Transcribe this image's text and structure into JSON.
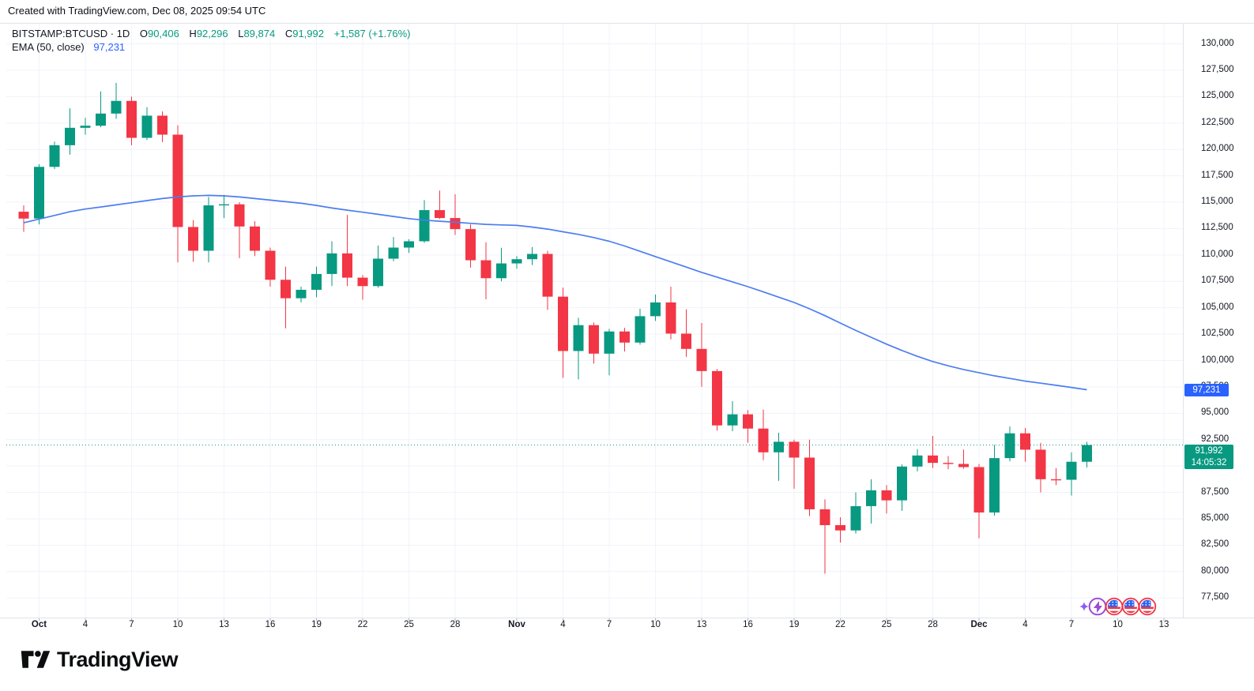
{
  "header": {
    "created_text": "Created with TradingView.com, Dec 08, 2025 09:54 UTC"
  },
  "legend": {
    "symbol_text": "BITSTAMP:BTCUSD · 1D",
    "o_label": "O",
    "o_value": "90,406",
    "h_label": "H",
    "h_value": "92,296",
    "l_label": "L",
    "l_value": "89,874",
    "c_label": "C",
    "c_value": "91,992",
    "change_text": "+1,587 (+1.76%)",
    "ema_label": "EMA (50, close)",
    "ema_value": "97,231"
  },
  "price_axis": {
    "ema_badge": {
      "text": "97,231",
      "color": "#2962ff"
    },
    "price_badge": {
      "price": "91,992",
      "countdown": "14:05:32",
      "color": "#089981"
    }
  },
  "events": {
    "icons": [
      "sparkle-icon",
      "lightning-event-icon",
      "us-flag-event-icon",
      "us-flag-event-icon",
      "us-flag-event-icon"
    ]
  },
  "footer": {
    "brand": "TradingView"
  },
  "chart_data": {
    "type": "candlestick",
    "title": "BITSTAMP:BTCUSD 1D with EMA(50)",
    "symbol": "BITSTAMP:BTCUSD",
    "interval": "1D",
    "start_date": "Sep 30",
    "end_date": "Dec 8",
    "current_price": 91992,
    "ema_current": 97231,
    "up_color": "#089981",
    "down_color": "#f23645",
    "ema_color": "#4c7df0",
    "grid_color": "#f0f3fa",
    "border_color": "#e0e3eb",
    "tick_stub_color": "#b2b5be",
    "ylim": [
      75643,
      131915
    ],
    "y_ticks": [
      130000,
      127500,
      125000,
      122500,
      120000,
      117500,
      115000,
      112500,
      110000,
      107500,
      105000,
      102500,
      100000,
      97500,
      95000,
      92500,
      90000,
      87500,
      85000,
      82500,
      80000,
      77500
    ],
    "x_labels": [
      {
        "i": 1,
        "t": "Oct",
        "bold": true
      },
      {
        "i": 4,
        "t": "4"
      },
      {
        "i": 7,
        "t": "7"
      },
      {
        "i": 10,
        "t": "10"
      },
      {
        "i": 13,
        "t": "13"
      },
      {
        "i": 16,
        "t": "16"
      },
      {
        "i": 19,
        "t": "19"
      },
      {
        "i": 22,
        "t": "22"
      },
      {
        "i": 25,
        "t": "25"
      },
      {
        "i": 28,
        "t": "28"
      },
      {
        "i": 32,
        "t": "Nov",
        "bold": true
      },
      {
        "i": 35,
        "t": "4"
      },
      {
        "i": 38,
        "t": "7"
      },
      {
        "i": 41,
        "t": "10"
      },
      {
        "i": 44,
        "t": "13"
      },
      {
        "i": 47,
        "t": "16"
      },
      {
        "i": 50,
        "t": "19"
      },
      {
        "i": 53,
        "t": "22"
      },
      {
        "i": 56,
        "t": "25"
      },
      {
        "i": 59,
        "t": "28"
      },
      {
        "i": 62,
        "t": "Dec",
        "bold": true
      },
      {
        "i": 65,
        "t": "4"
      },
      {
        "i": 68,
        "t": "7"
      },
      {
        "i": 71,
        "t": "10"
      },
      {
        "i": 74,
        "t": "13"
      }
    ],
    "candles": [
      [
        114100,
        114700,
        112200,
        113450
      ],
      [
        113450,
        118600,
        112900,
        118350
      ],
      [
        118350,
        120750,
        118150,
        120400
      ],
      [
        120400,
        123900,
        119500,
        122050
      ],
      [
        122050,
        123000,
        121400,
        122250
      ],
      [
        122250,
        125500,
        122100,
        123400
      ],
      [
        123400,
        126300,
        122900,
        124600
      ],
      [
        124600,
        125000,
        120400,
        121100
      ],
      [
        121100,
        124000,
        120900,
        123200
      ],
      [
        123200,
        123600,
        120700,
        121400
      ],
      [
        121400,
        122300,
        109300,
        112650
      ],
      [
        112650,
        113300,
        109350,
        110400
      ],
      [
        110400,
        115500,
        109300,
        114700
      ],
      [
        114700,
        115700,
        113500,
        114800
      ],
      [
        114800,
        115000,
        109700,
        112700
      ],
      [
        112700,
        113200,
        109900,
        110400
      ],
      [
        110400,
        110700,
        107000,
        107650
      ],
      [
        107650,
        108900,
        103050,
        105900
      ],
      [
        105900,
        107000,
        105500,
        106700
      ],
      [
        106700,
        108900,
        106000,
        108200
      ],
      [
        108200,
        111300,
        107050,
        110150
      ],
      [
        110150,
        113800,
        107050,
        107850
      ],
      [
        107850,
        108100,
        105750,
        107050
      ],
      [
        107050,
        110900,
        106900,
        109650
      ],
      [
        109650,
        111700,
        109400,
        110700
      ],
      [
        110700,
        111500,
        110200,
        111300
      ],
      [
        111300,
        115200,
        111150,
        114250
      ],
      [
        114250,
        116100,
        113400,
        113500
      ],
      [
        113500,
        115750,
        111900,
        112450
      ],
      [
        112450,
        112900,
        108800,
        109500
      ],
      [
        109500,
        111200,
        105800,
        107800
      ],
      [
        107800,
        110680,
        107500,
        109200
      ],
      [
        109200,
        109900,
        108700,
        109600
      ],
      [
        109600,
        110750,
        109050,
        110100
      ],
      [
        110100,
        110400,
        104800,
        106050
      ],
      [
        106050,
        106900,
        98350,
        100900
      ],
      [
        100900,
        104050,
        98200,
        103350
      ],
      [
        103350,
        103600,
        99700,
        100650
      ],
      [
        100650,
        103000,
        98600,
        102750
      ],
      [
        102750,
        103100,
        100850,
        101700
      ],
      [
        101700,
        104900,
        101500,
        104200
      ],
      [
        104200,
        106250,
        103750,
        105500
      ],
      [
        105500,
        107000,
        102000,
        102550
      ],
      [
        102550,
        104850,
        100350,
        101100
      ],
      [
        101100,
        103550,
        97500,
        99000
      ],
      [
        99000,
        99200,
        93350,
        93850
      ],
      [
        93850,
        96150,
        93300,
        94900
      ],
      [
        94900,
        95300,
        92200,
        93550
      ],
      [
        93550,
        95350,
        90550,
        91300
      ],
      [
        91300,
        93150,
        88600,
        92300
      ],
      [
        92300,
        92500,
        87850,
        90800
      ],
      [
        90800,
        92500,
        85250,
        85900
      ],
      [
        85900,
        86850,
        79800,
        84400
      ],
      [
        84400,
        85150,
        82750,
        83900
      ],
      [
        83900,
        87500,
        83600,
        86200
      ],
      [
        86200,
        88750,
        84550,
        87700
      ],
      [
        87700,
        88200,
        85500,
        86750
      ],
      [
        86750,
        90150,
        85750,
        89950
      ],
      [
        89950,
        91600,
        89500,
        91000
      ],
      [
        91000,
        92850,
        89800,
        90300
      ],
      [
        90300,
        90950,
        89700,
        90200
      ],
      [
        90200,
        91550,
        89750,
        89900
      ],
      [
        89900,
        90200,
        83150,
        85600
      ],
      [
        85600,
        92000,
        85300,
        90750
      ],
      [
        90750,
        93750,
        90450,
        93100
      ],
      [
        93100,
        93600,
        90400,
        91550
      ],
      [
        91550,
        92200,
        87500,
        88750
      ],
      [
        88750,
        89800,
        88200,
        88700
      ],
      [
        88700,
        91300,
        87200,
        90406
      ],
      [
        90406,
        92296,
        89874,
        91992
      ]
    ],
    "ema": [
      113050,
      113400,
      113750,
      114100,
      114350,
      114550,
      114750,
      114950,
      115150,
      115350,
      115500,
      115600,
      115650,
      115600,
      115500,
      115350,
      115200,
      115050,
      114900,
      114700,
      114450,
      114250,
      114050,
      113850,
      113650,
      113450,
      113300,
      113200,
      113100,
      113000,
      112900,
      112850,
      112800,
      112650,
      112450,
      112200,
      111950,
      111650,
      111300,
      110850,
      110350,
      109850,
      109350,
      108850,
      108350,
      107900,
      107450,
      107000,
      106500,
      106000,
      105500,
      104900,
      104250,
      103550,
      102850,
      102200,
      101550,
      100950,
      100400,
      99900,
      99500,
      99150,
      98850,
      98550,
      98300,
      98050,
      97850,
      97650,
      97450,
      97231
    ]
  }
}
